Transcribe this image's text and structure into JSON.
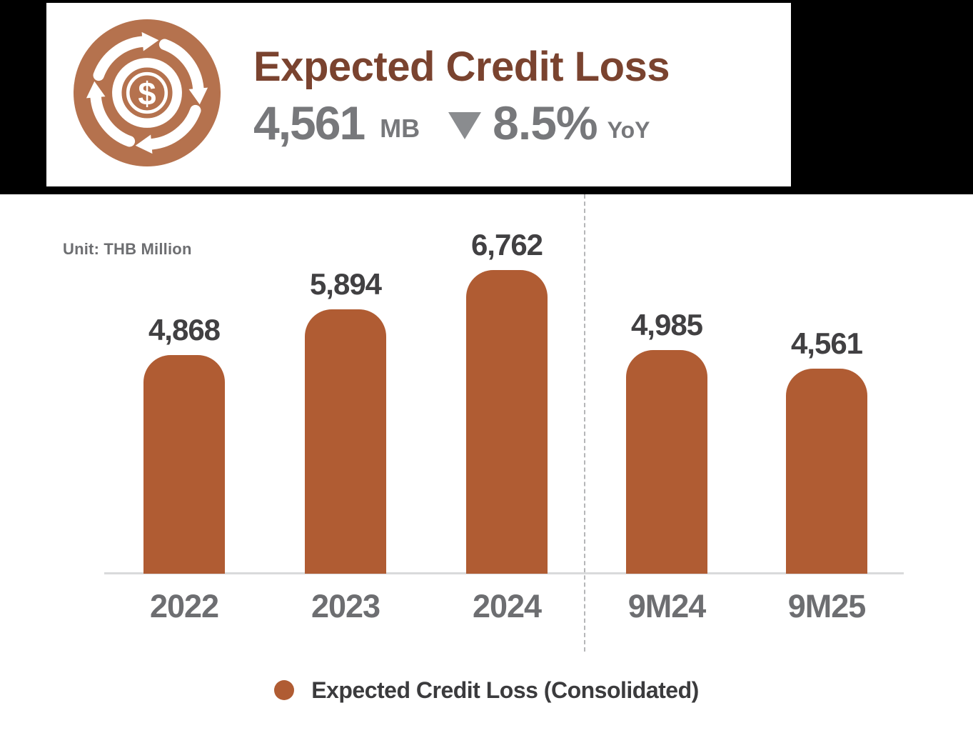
{
  "header": {
    "title": "Expected Credit Loss",
    "value": "4,561",
    "unit": "MB",
    "change_direction": "down",
    "change": "8.5%",
    "period": "YoY",
    "icon": "money-cycle-icon",
    "icon_color": "#b5724e"
  },
  "chart": {
    "unit_label": "Unit: THB Million"
  },
  "chart_data": {
    "type": "bar",
    "title": "Expected Credit Loss",
    "categories": [
      "2022",
      "2023",
      "2024",
      "9M24",
      "9M25"
    ],
    "values": [
      4868,
      5894,
      6762,
      4985,
      4561
    ],
    "value_labels": [
      "4,868",
      "5,894",
      "6,762",
      "4,985",
      "4,561"
    ],
    "unit": "THB Million",
    "ylim": [
      0,
      7200
    ],
    "grid": false,
    "bar_color": "#b05c33",
    "separator_after_index": 2,
    "legend_position": "bottom",
    "legend": [
      {
        "label": "Expected Credit Loss (Consolidated)",
        "color": "#b05c33"
      }
    ]
  },
  "colors": {
    "band": "#000000",
    "card_bg": "#ffffff",
    "title": "#7a432f",
    "stat_gray": "#77787b",
    "triangle": "#8a8c8f",
    "bar": "#b05c33",
    "value_label": "#414042",
    "axis_label": "#6d6e71",
    "axis_line": "#d9dadb",
    "separator": "#b5b6b8",
    "legend_text": "#3b3b3d"
  }
}
